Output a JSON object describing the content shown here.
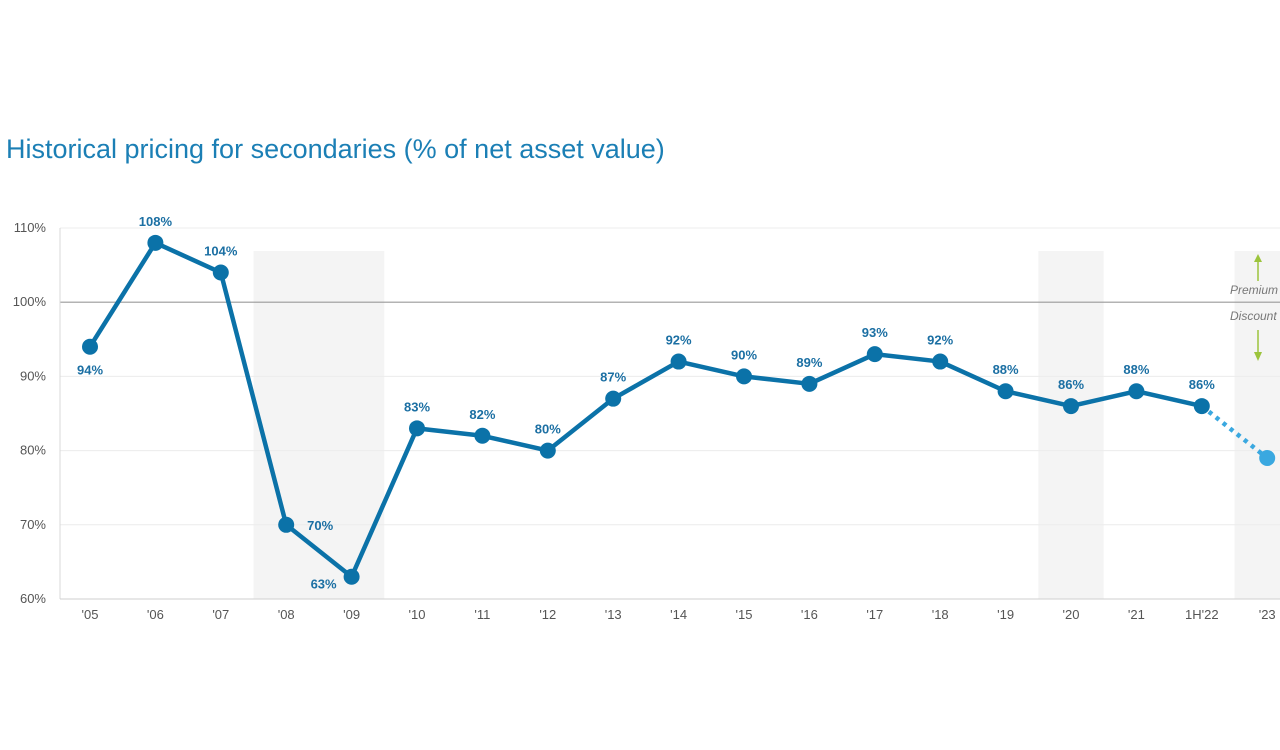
{
  "chart_data": {
    "type": "line",
    "title": "Historical pricing for secondaries (% of net asset value)",
    "xlabel": "",
    "ylabel": "",
    "categories": [
      "'05",
      "'06",
      "'07",
      "'08",
      "'09",
      "'10",
      "'11",
      "'12",
      "'13",
      "'14",
      "'15",
      "'16",
      "'17",
      "'18",
      "'19",
      "'20",
      "'21",
      "1H'22",
      "'23"
    ],
    "values": [
      94,
      108,
      104,
      70,
      63,
      83,
      82,
      80,
      87,
      92,
      90,
      89,
      93,
      92,
      88,
      86,
      88,
      86,
      79
    ],
    "data_labels": [
      "94%",
      "108%",
      "104%",
      "70%",
      "63%",
      "83%",
      "82%",
      "80%",
      "87%",
      "92%",
      "90%",
      "89%",
      "93%",
      "92%",
      "88%",
      "86%",
      "88%",
      "86%",
      ""
    ],
    "projected_from_index": 17,
    "ylim": [
      60,
      110
    ],
    "yticks": [
      60,
      70,
      80,
      90,
      100,
      110
    ],
    "ytick_labels": [
      "60%",
      "70%",
      "80%",
      "90%",
      "100%",
      "110%"
    ],
    "reference_line": 100,
    "shaded_periods": [
      [
        "'08",
        "'09"
      ],
      [
        "'20",
        "'20"
      ],
      [
        "'23",
        "'23"
      ]
    ],
    "annotations": {
      "premium": "Premium",
      "discount": "Discount"
    },
    "colors": {
      "line": "#0b72a8",
      "projected": "#3aa8e0",
      "shade": "#f4f4f4",
      "arrow": "#9cc43c",
      "title": "#1b7fb5"
    },
    "grid": true,
    "legend": "none"
  }
}
